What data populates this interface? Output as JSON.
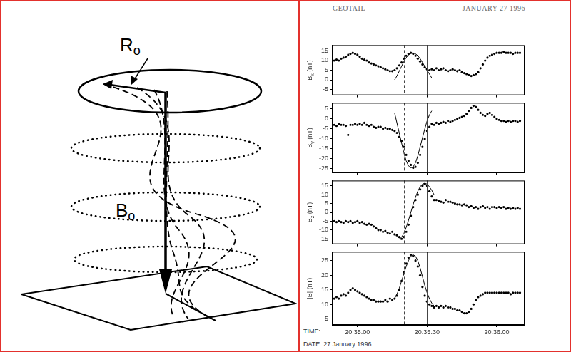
{
  "figure": {
    "header": {
      "left": "GEOTAIL",
      "right": "JANUARY 27 1996"
    },
    "x_axis_label": "TIME:",
    "date_line": "DATE: 27 January 1996"
  },
  "diagram": {
    "labels": [
      {
        "text": "R",
        "subscript": "o"
      },
      {
        "text": "B",
        "subscript": "o"
      }
    ]
  },
  "chart_data": [
    {
      "type": "line",
      "ylabel": {
        "text": "B",
        "subscript": "x",
        "unit": "(nT)"
      },
      "grid": false,
      "tick_labels": "y",
      "xlim": [
        74089,
        74172
      ],
      "xticks": [
        {
          "value": 74100,
          "label": "20:35:00"
        },
        {
          "value": 74130,
          "label": "20:35:30"
        },
        {
          "value": 74160,
          "label": "20:36:00"
        }
      ],
      "ylim": [
        -8,
        18
      ],
      "yticks": [
        -5,
        0,
        5,
        10,
        15
      ],
      "x": [
        74090,
        74091,
        74092,
        74093,
        74094,
        74095,
        74096,
        74097,
        74098,
        74099,
        74100,
        74101,
        74102,
        74103,
        74104,
        74105,
        74106,
        74107,
        74108,
        74109,
        74110,
        74111,
        74112,
        74113,
        74114,
        74115,
        74116,
        74117,
        74118,
        74119,
        74120,
        74121,
        74122,
        74123,
        74124,
        74125,
        74126,
        74127,
        74128,
        74129,
        74130,
        74131,
        74132,
        74133,
        74134,
        74135,
        74136,
        74137,
        74138,
        74139,
        74140,
        74141,
        74142,
        74143,
        74144,
        74145,
        74146,
        74147,
        74148,
        74149,
        74150,
        74151,
        74152,
        74153,
        74154,
        74155,
        74156,
        74157,
        74158,
        74159,
        74160,
        74161,
        74162,
        74163,
        74164,
        74165,
        74166,
        74167,
        74168,
        74169,
        74170
      ],
      "series": [
        {
          "color": "#000000",
          "marker": "circle",
          "line_style": "none",
          "values": [
            10,
            10.5,
            10,
            11,
            11.5,
            12,
            13,
            13.5,
            14,
            13.5,
            13,
            12,
            11,
            10.5,
            10,
            9,
            8.5,
            8,
            7.5,
            7,
            6.5,
            6,
            5.5,
            5,
            4.5,
            4.5,
            5,
            6,
            7.5,
            9,
            11,
            12.5,
            13.5,
            14,
            13.5,
            12.5,
            11,
            9.5,
            8,
            6.5,
            5.5,
            5,
            5.5,
            5,
            6,
            5,
            5.5,
            6,
            5,
            4.5,
            5,
            5.5,
            5,
            4.5,
            5,
            4,
            3.5,
            3,
            2.5,
            2,
            2.5,
            3,
            4,
            6,
            8,
            10,
            11.5,
            12.5,
            13,
            13.5,
            14,
            14,
            14,
            14.5,
            14,
            14,
            14,
            13.5,
            14,
            14,
            14
          ]
        },
        {
          "color": "#000000",
          "marker": "none",
          "line_style": "solid",
          "x": [
            74116,
            74117,
            74118,
            74119,
            74120,
            74121,
            74122,
            74123,
            74124,
            74125,
            74126,
            74127,
            74128,
            74129,
            74130,
            74131,
            74132
          ],
          "values": [
            0,
            2,
            4.5,
            7,
            9.5,
            11.5,
            13,
            13.8,
            14,
            13.5,
            12.5,
            11,
            9,
            7,
            5,
            3,
            1
          ]
        }
      ],
      "vertical_lines": [
        {
          "x": 74120,
          "line_style": "dashed"
        },
        {
          "x": 74130,
          "line_style": "solid"
        }
      ]
    },
    {
      "type": "line",
      "ylabel": {
        "text": "B",
        "subscript": "y",
        "unit": "(nT)"
      },
      "grid": false,
      "tick_labels": "y",
      "xlim": [
        74089,
        74172
      ],
      "xticks": [
        {
          "value": 74100,
          "label": "20:35:00"
        },
        {
          "value": 74130,
          "label": "20:35:30"
        },
        {
          "value": 74160,
          "label": "20:36:00"
        }
      ],
      "ylim": [
        -27,
        8
      ],
      "yticks": [
        -25,
        -20,
        -15,
        -10,
        -5,
        0,
        5
      ],
      "x": [
        74090,
        74091,
        74092,
        74093,
        74094,
        74095,
        74096,
        74097,
        74098,
        74099,
        74100,
        74101,
        74102,
        74103,
        74104,
        74105,
        74106,
        74107,
        74108,
        74109,
        74110,
        74111,
        74112,
        74113,
        74114,
        74115,
        74116,
        74117,
        74118,
        74119,
        74120,
        74121,
        74122,
        74123,
        74124,
        74125,
        74126,
        74127,
        74128,
        74129,
        74130,
        74131,
        74132,
        74133,
        74134,
        74135,
        74136,
        74137,
        74138,
        74139,
        74140,
        74141,
        74142,
        74143,
        74144,
        74145,
        74146,
        74147,
        74148,
        74149,
        74150,
        74151,
        74152,
        74153,
        74154,
        74155,
        74156,
        74157,
        74158,
        74159,
        74160,
        74161,
        74162,
        74163,
        74164,
        74165,
        74166,
        74167,
        74168,
        74169,
        74170
      ],
      "series": [
        {
          "color": "#000000",
          "marker": "circle",
          "line_style": "none",
          "values": [
            -3,
            -3.5,
            -2.5,
            -3,
            -3,
            -3.5,
            -8,
            -3,
            -3,
            -2.5,
            -3,
            -2.5,
            -3,
            -2,
            -3,
            -3.5,
            -3,
            -4,
            -4.5,
            -4,
            -4,
            -5,
            -4.5,
            -5,
            -5,
            -5.5,
            -6,
            -7,
            -9,
            -11,
            -14,
            -18,
            -21,
            -23,
            -24.5,
            -24,
            -22,
            -18,
            -14,
            -10,
            -6,
            -4,
            -2.5,
            -3,
            -2,
            -2.5,
            -2,
            -1.5,
            -2,
            -1,
            -1.5,
            -1,
            -0.5,
            0,
            0.5,
            1,
            1.5,
            2.5,
            4,
            5.5,
            6.5,
            6,
            4.5,
            3,
            2,
            1.5,
            2.5,
            3,
            2,
            1,
            0,
            -0.5,
            -1,
            -1,
            -1.5,
            -1,
            -1.5,
            -1,
            -1,
            -1.5,
            -1
          ]
        },
        {
          "color": "#000000",
          "marker": "none",
          "line_style": "solid",
          "x": [
            74116,
            74117,
            74118,
            74119,
            74120,
            74121,
            74122,
            74123,
            74124,
            74125,
            74126,
            74127,
            74128,
            74129,
            74130,
            74131,
            74132
          ],
          "values": [
            3,
            -2,
            -7,
            -12,
            -17,
            -21,
            -23.5,
            -24.5,
            -24,
            -22,
            -18.5,
            -14,
            -9.5,
            -5,
            -1,
            2,
            4
          ]
        }
      ],
      "vertical_lines": [
        {
          "x": 74120,
          "line_style": "dashed"
        },
        {
          "x": 74130,
          "line_style": "solid"
        }
      ]
    },
    {
      "type": "line",
      "ylabel": {
        "text": "B",
        "subscript": "z",
        "unit": "(nT)"
      },
      "grid": false,
      "tick_labels": "y",
      "xlim": [
        74089,
        74172
      ],
      "xticks": [
        {
          "value": 74100,
          "label": "20:35:00"
        },
        {
          "value": 74130,
          "label": "20:35:30"
        },
        {
          "value": 74160,
          "label": "20:36:00"
        }
      ],
      "ylim": [
        -18,
        18
      ],
      "yticks": [
        -15,
        -10,
        -5,
        0,
        5,
        10,
        15
      ],
      "x": [
        74090,
        74091,
        74092,
        74093,
        74094,
        74095,
        74096,
        74097,
        74098,
        74099,
        74100,
        74101,
        74102,
        74103,
        74104,
        74105,
        74106,
        74107,
        74108,
        74109,
        74110,
        74111,
        74112,
        74113,
        74114,
        74115,
        74116,
        74117,
        74118,
        74119,
        74120,
        74121,
        74122,
        74123,
        74124,
        74125,
        74126,
        74127,
        74128,
        74129,
        74130,
        74131,
        74132,
        74133,
        74134,
        74135,
        74136,
        74137,
        74138,
        74139,
        74140,
        74141,
        74142,
        74143,
        74144,
        74145,
        74146,
        74147,
        74148,
        74149,
        74150,
        74151,
        74152,
        74153,
        74154,
        74155,
        74156,
        74157,
        74158,
        74159,
        74160,
        74161,
        74162,
        74163,
        74164,
        74165,
        74166,
        74167,
        74168,
        74169,
        74170
      ],
      "series": [
        {
          "color": "#000000",
          "marker": "circle",
          "line_style": "none",
          "values": [
            -5,
            -5.5,
            -5,
            -5.5,
            -6,
            -5,
            -5.5,
            -5,
            -6,
            -5.5,
            -5,
            -6,
            -5.5,
            -6.5,
            -7,
            -6.5,
            -7,
            -8,
            -9,
            -10,
            -10,
            -11,
            -10.5,
            -11.5,
            -12,
            -11,
            -12.5,
            -13,
            -14,
            -15,
            -14,
            -11,
            -7,
            -2,
            3,
            7,
            10,
            13,
            15,
            16,
            15,
            12,
            9,
            7,
            7,
            6.5,
            6,
            5.5,
            7,
            6,
            6,
            5.5,
            5,
            4.5,
            4.5,
            4,
            4.5,
            4,
            3,
            3.5,
            2.5,
            3,
            2,
            3,
            3.5,
            2.5,
            3,
            2,
            3,
            3,
            2.5,
            3,
            2.5,
            3,
            2,
            2.5,
            2,
            2.5,
            2,
            2.5,
            2
          ]
        },
        {
          "color": "#000000",
          "marker": "none",
          "line_style": "solid",
          "x": [
            74117,
            74118,
            74119,
            74120,
            74121,
            74122,
            74123,
            74124,
            74125,
            74126,
            74127,
            74128,
            74129,
            74130,
            74131,
            74132,
            74133
          ],
          "values": [
            -13,
            -14.5,
            -14,
            -12,
            -8.5,
            -4.5,
            0,
            4.5,
            8.5,
            12,
            14.5,
            16,
            16.5,
            16,
            14.5,
            12.5,
            10
          ]
        }
      ],
      "vertical_lines": [
        {
          "x": 74120,
          "line_style": "dashed"
        },
        {
          "x": 74130,
          "line_style": "solid"
        }
      ]
    },
    {
      "type": "line",
      "ylabel": {
        "text": "|B|",
        "unit": "(nT)"
      },
      "grid": false,
      "xlim": [
        74089,
        74172
      ],
      "xticks": [
        {
          "value": 74100,
          "label": "20:35:00"
        },
        {
          "value": 74130,
          "label": "20:35:30"
        },
        {
          "value": 74160,
          "label": "20:36:00"
        }
      ],
      "ylim": [
        3,
        28
      ],
      "yticks": [
        5,
        10,
        15,
        20,
        25
      ],
      "x": [
        74090,
        74091,
        74092,
        74093,
        74094,
        74095,
        74096,
        74097,
        74098,
        74099,
        74100,
        74101,
        74102,
        74103,
        74104,
        74105,
        74106,
        74107,
        74108,
        74109,
        74110,
        74111,
        74112,
        74113,
        74114,
        74115,
        74116,
        74117,
        74118,
        74119,
        74120,
        74121,
        74122,
        74123,
        74124,
        74125,
        74126,
        74127,
        74128,
        74129,
        74130,
        74131,
        74132,
        74133,
        74134,
        74135,
        74136,
        74137,
        74138,
        74139,
        74140,
        74141,
        74142,
        74143,
        74144,
        74145,
        74146,
        74147,
        74148,
        74149,
        74150,
        74151,
        74152,
        74153,
        74154,
        74155,
        74156,
        74157,
        74158,
        74159,
        74160,
        74161,
        74162,
        74163,
        74164,
        74165,
        74166,
        74167,
        74168,
        74169,
        74170
      ],
      "series": [
        {
          "color": "#000000",
          "marker": "circle",
          "line_style": "none",
          "values": [
            12,
            12.5,
            12,
            13,
            13.5,
            13,
            14,
            15,
            15.5,
            15,
            14.5,
            14,
            13.5,
            13,
            12.5,
            12,
            11.5,
            11.5,
            11,
            11,
            11,
            11,
            11.5,
            11,
            12,
            11.5,
            12,
            13,
            15,
            18,
            21,
            24,
            26,
            27,
            26.5,
            25,
            23,
            20,
            16,
            13,
            11,
            10,
            9.5,
            9,
            9.5,
            9,
            9.5,
            9,
            9.5,
            9,
            9,
            8.5,
            8.5,
            8,
            8,
            7.5,
            7,
            7,
            7.5,
            8.5,
            10,
            11.5,
            12.5,
            13,
            13.5,
            14,
            14,
            14,
            14,
            14,
            14,
            14,
            14,
            14,
            14,
            14,
            13.5,
            14,
            14,
            14,
            14
          ]
        },
        {
          "color": "#000000",
          "marker": "none",
          "line_style": "solid",
          "x": [
            74116,
            74117,
            74118,
            74119,
            74120,
            74121,
            74122,
            74123,
            74124,
            74125,
            74126,
            74127,
            74128,
            74129,
            74130,
            74131,
            74132,
            74133
          ],
          "values": [
            12,
            13.5,
            15.5,
            18,
            20.5,
            23,
            25,
            26.5,
            27,
            26.5,
            25,
            22.5,
            19.5,
            16.5,
            14,
            12,
            10.5,
            9.5
          ]
        }
      ],
      "vertical_lines": [
        {
          "x": 74120,
          "line_style": "dashed"
        },
        {
          "x": 74130,
          "line_style": "solid"
        }
      ]
    }
  ]
}
